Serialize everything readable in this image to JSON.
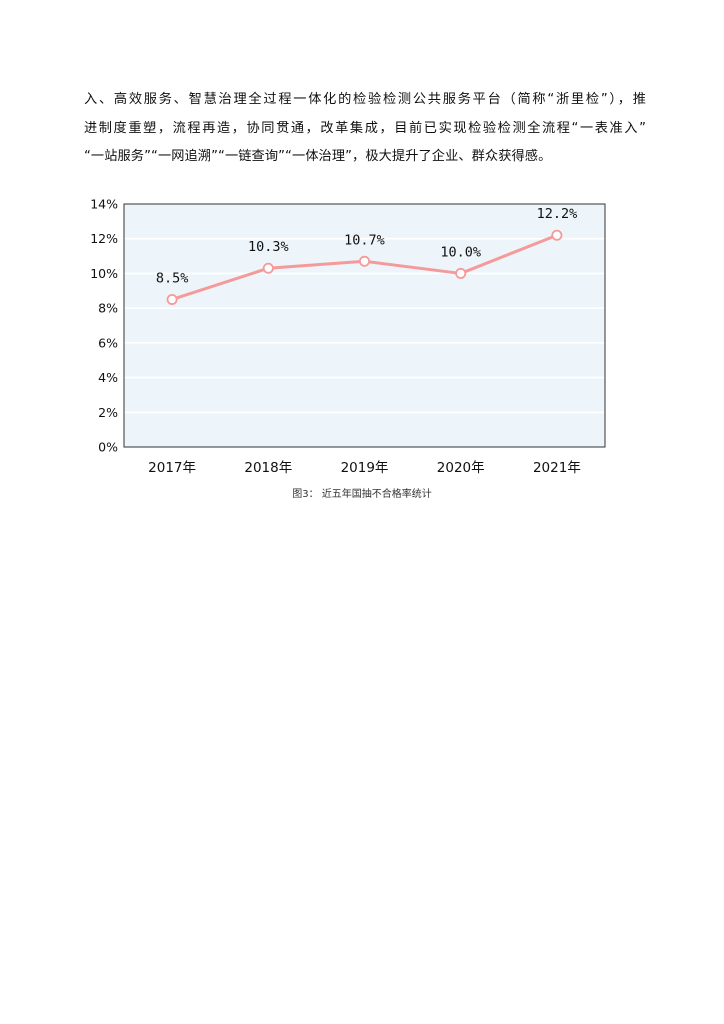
{
  "document": {
    "paragraph_lines": [
      "入、高效服务、智慧治理全过程一体化的检验检测公共服务平台（简称“浙里检”），推",
      "进制度重塑，流程再造，协同贯通，改革集成，目前已实现检验检测全流程“一表准入”",
      "“一站服务”“一网追溯”“一链查询”“一体治理”，极大提升了企业、群众获得感。"
    ],
    "figure_caption": "图3： 近五年国抽不合格率统计"
  },
  "chart_data": {
    "type": "line",
    "title": "",
    "xlabel": "",
    "ylabel": "",
    "categories": [
      "2017年",
      "2018年",
      "2019年",
      "2020年",
      "2021年"
    ],
    "values": [
      8.5,
      10.3,
      10.7,
      10.0,
      12.2
    ],
    "data_labels": [
      "8.5%",
      "10.3%",
      "10.7%",
      "10.0%",
      "12.2%"
    ],
    "y_ticks": [
      0,
      2,
      4,
      6,
      8,
      10,
      12,
      14
    ],
    "y_tick_labels": [
      "0%",
      "2%",
      "4%",
      "6%",
      "8%",
      "10%",
      "12%",
      "14%"
    ],
    "ylim": [
      0,
      14
    ],
    "grid": true,
    "legend": "none",
    "colors": {
      "line": "#f59a9a",
      "marker_fill": "#ffffff",
      "plot_background": "#eef5fa",
      "grid": "#ffffff",
      "axis": "#333333"
    }
  }
}
